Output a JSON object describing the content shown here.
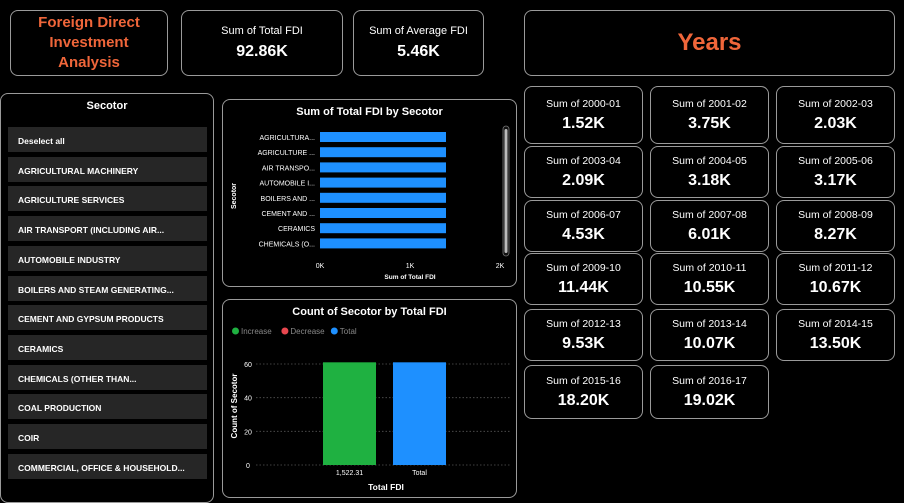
{
  "header": {
    "title": "Foreign Direct Investment Analysis",
    "total_fdi_label": "Sum of Total FDI",
    "total_fdi_value": "92.86K",
    "avg_fdi_label": "Sum of Average FDI",
    "avg_fdi_value": "5.46K",
    "years_title": "Years"
  },
  "slicer": {
    "title": "Secotor",
    "items": [
      "Deselect all",
      "AGRICULTURAL MACHINERY",
      "AGRICULTURE SERVICES",
      "AIR TRANSPORT (INCLUDING AIR...",
      "AUTOMOBILE INDUSTRY",
      "BOILERS AND STEAM GENERATING...",
      "CEMENT AND GYPSUM PRODUCTS",
      "CERAMICS",
      "CHEMICALS (OTHER THAN...",
      "COAL PRODUCTION",
      "COIR",
      "COMMERCIAL, OFFICE & HOUSEHOLD..."
    ]
  },
  "years": [
    {
      "label": "Sum of 2000-01",
      "value": "1.52K"
    },
    {
      "label": "Sum of 2001-02",
      "value": "3.75K"
    },
    {
      "label": "Sum of 2002-03",
      "value": "2.03K"
    },
    {
      "label": "Sum of 2003-04",
      "value": "2.09K"
    },
    {
      "label": "Sum of 2004-05",
      "value": "3.18K"
    },
    {
      "label": "Sum of 2005-06",
      "value": "3.17K"
    },
    {
      "label": "Sum of 2006-07",
      "value": "4.53K"
    },
    {
      "label": "Sum of 2007-08",
      "value": "6.01K"
    },
    {
      "label": "Sum of 2008-09",
      "value": "8.27K"
    },
    {
      "label": "Sum of 2009-10",
      "value": "11.44K"
    },
    {
      "label": "Sum of 2010-11",
      "value": "10.55K"
    },
    {
      "label": "Sum of 2011-12",
      "value": "10.67K"
    },
    {
      "label": "Sum of 2012-13",
      "value": "9.53K"
    },
    {
      "label": "Sum of 2013-14",
      "value": "10.07K"
    },
    {
      "label": "Sum of 2014-15",
      "value": "13.50K"
    },
    {
      "label": "Sum of 2015-16",
      "value": "18.20K"
    },
    {
      "label": "Sum of 2016-17",
      "value": "19.02K"
    }
  ],
  "colors": {
    "accent": "#f0663a",
    "bar_blue": "#1e90ff",
    "increase": "#1fb141",
    "decrease": "#e8474f",
    "total": "#1e90ff"
  },
  "chart_data": [
    {
      "type": "bar",
      "orientation": "horizontal",
      "title": "Sum of Total FDI by Secotor",
      "xlabel": "Sum of Total FDI",
      "ylabel": "Secotor",
      "categories": [
        "AGRICULTURA...",
        "AGRICULTURE ...",
        "AIR TRANSPO...",
        "AUTOMOBILE I...",
        "BOILERS AND ...",
        "CEMENT AND ...",
        "CERAMICS",
        "CHEMICALS (O..."
      ],
      "values": [
        1400,
        1400,
        1400,
        1400,
        1400,
        1400,
        1400,
        1400
      ],
      "xlim": [
        0,
        2000
      ],
      "xticks": [
        {
          "v": 0,
          "label": "0K"
        },
        {
          "v": 1000,
          "label": "1K"
        },
        {
          "v": 2000,
          "label": "2K"
        }
      ]
    },
    {
      "type": "bar",
      "subtype": "waterfall",
      "title": "Count of Secotor by Total FDI",
      "xlabel": "Total FDI",
      "ylabel": "Count of Secotor",
      "legend": [
        {
          "name": "Increase",
          "color": "#1fb141"
        },
        {
          "name": "Decrease",
          "color": "#e8474f"
        },
        {
          "name": "Total",
          "color": "#1e90ff"
        }
      ],
      "categories": [
        "1,522.31",
        "Total"
      ],
      "values": [
        61,
        61
      ],
      "kinds": [
        "increase",
        "total"
      ],
      "ylim": [
        0,
        60
      ],
      "yticks": [
        0,
        20,
        40,
        60
      ]
    }
  ]
}
